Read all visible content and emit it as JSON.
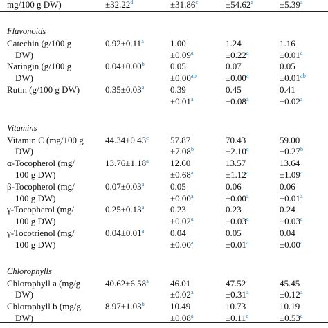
{
  "table": {
    "top_row": {
      "label": [
        "mg/100 g DW)"
      ],
      "cells": [
        {
          "lines": [
            "±32.22"
          ],
          "sig": "d"
        },
        {
          "lines": [
            "±31.86"
          ],
          "sig": "c"
        },
        {
          "lines": [
            "±54.62"
          ],
          "sig": "a"
        },
        {
          "lines": [
            "±5.39"
          ],
          "sig": "a"
        }
      ]
    },
    "sections": [
      {
        "title": "Flavonoids",
        "rows": [
          {
            "label": [
              "Catechin (g/100 g",
              "DW)"
            ],
            "cells": [
              {
                "lines": [
                  "0.92±0.11"
                ],
                "sig": "a"
              },
              {
                "lines": [
                  "1.00",
                  "±0.09"
                ],
                "sig": "a"
              },
              {
                "lines": [
                  "1.24",
                  "±0.22"
                ],
                "sig": "a"
              },
              {
                "lines": [
                  "1.16",
                  "±0.01"
                ],
                "sig": "a"
              }
            ]
          },
          {
            "label": [
              "Naringin (g/100 g",
              "DW)"
            ],
            "cells": [
              {
                "lines": [
                  "0.04±0.00"
                ],
                "sig": "b"
              },
              {
                "lines": [
                  "0.05",
                  "±0.00"
                ],
                "sig": "ab"
              },
              {
                "lines": [
                  "0.07",
                  "±0.00"
                ],
                "sig": "a"
              },
              {
                "lines": [
                  "0.05",
                  "±0.01"
                ],
                "sig": "ab"
              }
            ]
          },
          {
            "label": [
              "Rutin (g/100 g DW)"
            ],
            "cells": [
              {
                "lines": [
                  "0.35±0.03"
                ],
                "sig": "a"
              },
              {
                "lines": [
                  "0.39",
                  "±0.01"
                ],
                "sig": "a"
              },
              {
                "lines": [
                  "0.45",
                  "±0.08"
                ],
                "sig": "a"
              },
              {
                "lines": [
                  "0.41",
                  "±0.02"
                ],
                "sig": "a"
              }
            ]
          }
        ]
      },
      {
        "title": "Vitamins",
        "rows": [
          {
            "label": [
              "Vitamin C (mg/100 g",
              "DW)"
            ],
            "cells": [
              {
                "lines": [
                  "44.34±0.43"
                ],
                "sig": "c"
              },
              {
                "lines": [
                  "57.87",
                  "±7.08"
                ],
                "sig": "b"
              },
              {
                "lines": [
                  "70.43",
                  "±2.10"
                ],
                "sig": "a"
              },
              {
                "lines": [
                  "59.00",
                  "±0.27"
                ],
                "sig": "b"
              }
            ]
          },
          {
            "label": [
              "α-Tocopherol (mg/",
              "100 g DW)"
            ],
            "cells": [
              {
                "lines": [
                  "13.76±1.18"
                ],
                "sig": "a"
              },
              {
                "lines": [
                  "12.60",
                  "±0.68"
                ],
                "sig": "a"
              },
              {
                "lines": [
                  "13.57",
                  "±1.12"
                ],
                "sig": "a"
              },
              {
                "lines": [
                  "13.64",
                  "±1.09"
                ],
                "sig": "a"
              }
            ]
          },
          {
            "label": [
              "β-Tocopherol (mg/",
              "100 g DW)"
            ],
            "cells": [
              {
                "lines": [
                  "0.07±0.03"
                ],
                "sig": "a"
              },
              {
                "lines": [
                  "0.05",
                  "±0.00"
                ],
                "sig": "a"
              },
              {
                "lines": [
                  "0.06",
                  "±0.00"
                ],
                "sig": "a"
              },
              {
                "lines": [
                  "0.06",
                  "±0.01"
                ],
                "sig": "a"
              }
            ]
          },
          {
            "label": [
              "γ-Tocopherol (mg/",
              "100 g DW)"
            ],
            "cells": [
              {
                "lines": [
                  "0.25±0.13"
                ],
                "sig": "a"
              },
              {
                "lines": [
                  "0.23",
                  "±0.02"
                ],
                "sig": "a"
              },
              {
                "lines": [
                  "0.23",
                  "±0.03"
                ],
                "sig": "a"
              },
              {
                "lines": [
                  "0.24",
                  "±0.03"
                ],
                "sig": "a"
              }
            ]
          },
          {
            "label": [
              "γ-Tocotrienol (mg/",
              "100 g DW)"
            ],
            "cells": [
              {
                "lines": [
                  "0.04±0.01"
                ],
                "sig": "a"
              },
              {
                "lines": [
                  "0.04",
                  "±0.00"
                ],
                "sig": "a"
              },
              {
                "lines": [
                  "0.05",
                  "±0.01"
                ],
                "sig": "a"
              },
              {
                "lines": [
                  "0.04",
                  "±0.00"
                ],
                "sig": "a"
              }
            ]
          }
        ]
      },
      {
        "title": "Chlorophylls",
        "rows": [
          {
            "label": [
              "Chlorophyll a (mg/g",
              "DW)"
            ],
            "cells": [
              {
                "lines": [
                  "40.62±6.58"
                ],
                "sig": "a"
              },
              {
                "lines": [
                  "46.01",
                  "±0.02"
                ],
                "sig": "a"
              },
              {
                "lines": [
                  "47.52",
                  "±0.31"
                ],
                "sig": "a"
              },
              {
                "lines": [
                  "45.45",
                  "±0.12"
                ],
                "sig": "a"
              }
            ]
          },
          {
            "label": [
              "Chlorophyll b (mg/g",
              "DW)"
            ],
            "cells": [
              {
                "lines": [
                  "8.97±1.03"
                ],
                "sig": "b"
              },
              {
                "lines": [
                  "10.49",
                  "±0.08"
                ],
                "sig": "a"
              },
              {
                "lines": [
                  "10.73",
                  "±0.11"
                ],
                "sig": "a"
              },
              {
                "lines": [
                  "10.19",
                  "±0.53"
                ],
                "sig": "a"
              }
            ]
          }
        ]
      }
    ]
  }
}
